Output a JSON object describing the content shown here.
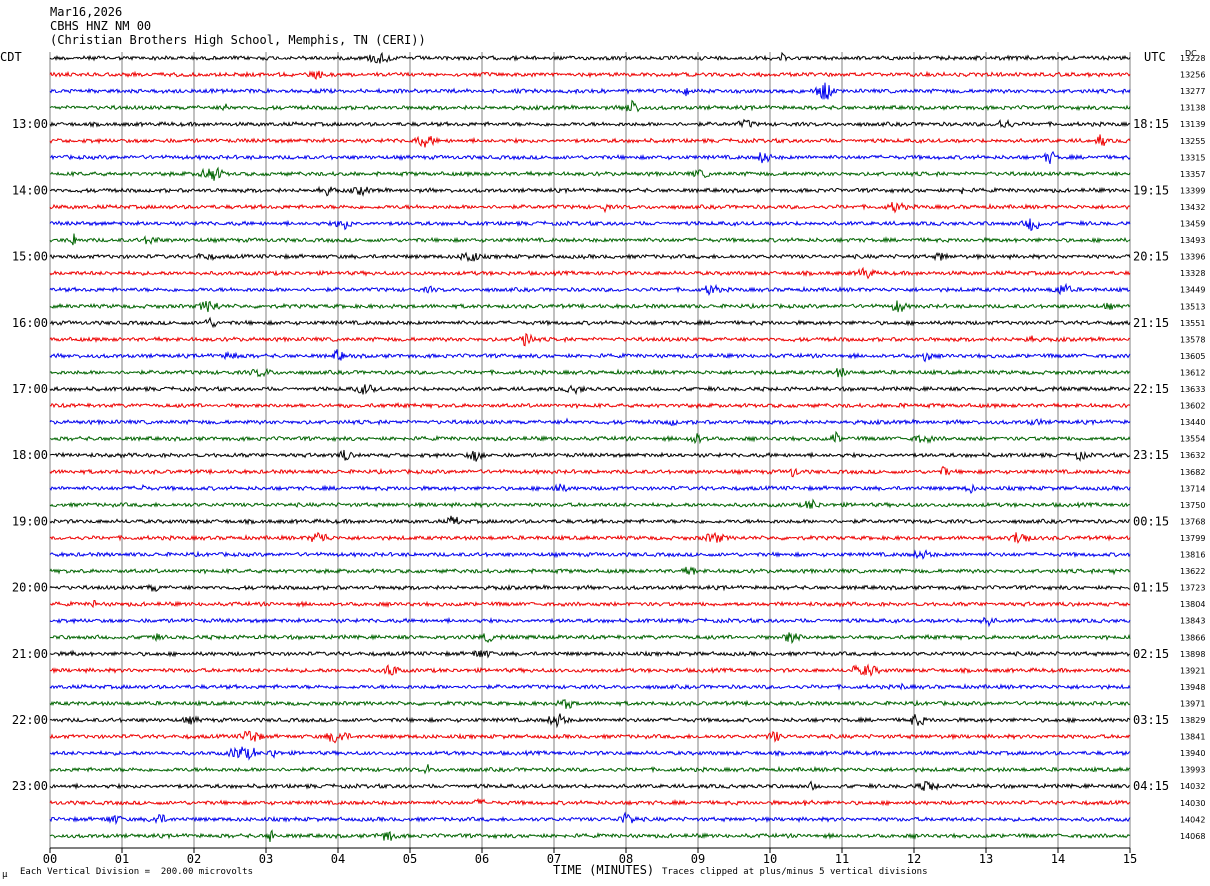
{
  "header": {
    "date": "Mar16,2026",
    "station": "CBHS HNZ NM 00",
    "location": "(Christian Brothers High School, Memphis, TN (CERI))"
  },
  "labels": {
    "left_timezone": "CDT",
    "right_timezone": "UTC",
    "dc_header": "DC",
    "xaxis_title": "TIME (MINUTES)",
    "scale_note": "Each Vertical Division =  200.00 microvolts",
    "clip_note": "Traces clipped at plus/minus 5 vertical divisions",
    "corner_mark": "μ"
  },
  "chart_data": {
    "type": "line",
    "title": "Mar16,2026  CBHS HNZ NM 00",
    "xlabel": "TIME (MINUTES)",
    "xlim": [
      0,
      15
    ],
    "x_ticks": [
      "00",
      "01",
      "02",
      "03",
      "04",
      "05",
      "06",
      "07",
      "08",
      "09",
      "10",
      "11",
      "12",
      "13",
      "14",
      "15"
    ],
    "trace_colors": [
      "#000000",
      "#ee0000",
      "#0000ee",
      "#006400"
    ],
    "left_hour_labels": [
      "13:00",
      "14:00",
      "15:00",
      "16:00",
      "17:00",
      "18:00",
      "19:00",
      "20:00",
      "21:00",
      "22:00",
      "23:00"
    ],
    "right_hour_labels": [
      "18:15",
      "19:15",
      "20:15",
      "21:15",
      "22:15",
      "23:15",
      "00:15",
      "01:15",
      "02:15",
      "03:15",
      "04:15"
    ],
    "hour_label_first_trace": 4,
    "trace_dc_offsets": [
      "13228",
      "13256",
      "13277",
      "13138",
      "13139",
      "13255",
      "13315",
      "13357",
      "13399",
      "13432",
      "13459",
      "13493",
      "13396",
      "13328",
      "13449",
      "13513",
      "13551",
      "13578",
      "13605",
      "13612",
      "13633",
      "13602",
      "13440",
      "13554",
      "13632",
      "13682",
      "13714",
      "13750",
      "13768",
      "13799",
      "13816",
      "13622",
      "13723",
      "13804",
      "13843",
      "13866",
      "13898",
      "13921",
      "13948",
      "13971",
      "13829",
      "13841",
      "13940",
      "13993",
      "14032",
      "14030",
      "14042",
      "14068"
    ],
    "grid": true
  }
}
